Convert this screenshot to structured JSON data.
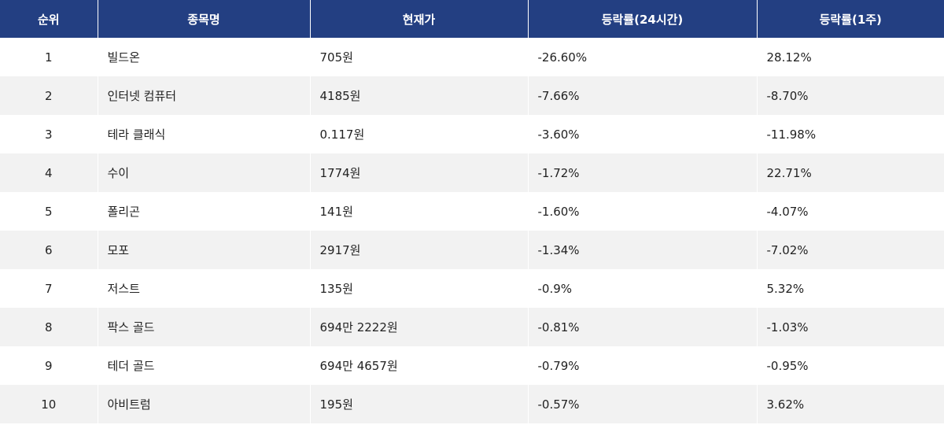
{
  "table": {
    "headers": {
      "rank": "순위",
      "name": "종목명",
      "price": "현재가",
      "change_24h": "등락률(24시간)",
      "change_1w": "등락률(1주)"
    },
    "rows": [
      {
        "rank": "1",
        "name": "빌드온",
        "price": "705원",
        "change_24h": "-26.60%",
        "change_1w": "28.12%"
      },
      {
        "rank": "2",
        "name": "인터넷 컴퓨터",
        "price": "4185원",
        "change_24h": "-7.66%",
        "change_1w": "-8.70%"
      },
      {
        "rank": "3",
        "name": "테라 클래식",
        "price": "0.117원",
        "change_24h": "-3.60%",
        "change_1w": "-11.98%"
      },
      {
        "rank": "4",
        "name": "수이",
        "price": "1774원",
        "change_24h": "-1.72%",
        "change_1w": "22.71%"
      },
      {
        "rank": "5",
        "name": "폴리곤",
        "price": "141원",
        "change_24h": "-1.60%",
        "change_1w": "-4.07%"
      },
      {
        "rank": "6",
        "name": "모포",
        "price": "2917원",
        "change_24h": "-1.34%",
        "change_1w": "-7.02%"
      },
      {
        "rank": "7",
        "name": "저스트",
        "price": "135원",
        "change_24h": "-0.9%",
        "change_1w": "5.32%"
      },
      {
        "rank": "8",
        "name": "팍스 골드",
        "price": "694만 2222원",
        "change_24h": "-0.81%",
        "change_1w": "-1.03%"
      },
      {
        "rank": "9",
        "name": "테더 골드",
        "price": "694만 4657원",
        "change_24h": "-0.79%",
        "change_1w": "-0.95%"
      },
      {
        "rank": "10",
        "name": "아비트럼",
        "price": "195원",
        "change_24h": "-0.57%",
        "change_1w": "3.62%"
      }
    ]
  },
  "colors": {
    "header_bg": "#233f82",
    "header_text": "#ffffff",
    "row_alt_bg": "#f2f2f2",
    "text": "#222222"
  }
}
